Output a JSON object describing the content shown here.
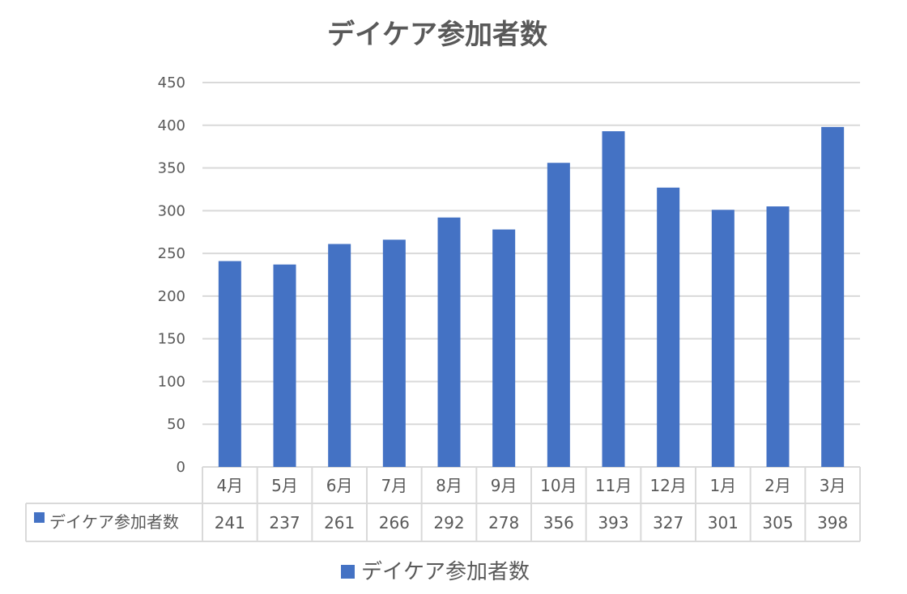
{
  "chart_data": {
    "type": "bar",
    "title": "デイケア参加者数",
    "categories": [
      "4月",
      "5月",
      "6月",
      "7月",
      "8月",
      "9月",
      "10月",
      "11月",
      "12月",
      "1月",
      "2月",
      "3月"
    ],
    "series": [
      {
        "name": "デイケア参加者数",
        "values": [
          241,
          237,
          261,
          266,
          292,
          278,
          356,
          393,
          327,
          301,
          305,
          398
        ]
      }
    ],
    "ylim": [
      0,
      450
    ],
    "yticks": [
      0,
      50,
      100,
      150,
      200,
      250,
      300,
      350,
      400,
      450
    ],
    "grid": true,
    "data_table": true,
    "legend_position": "bottom",
    "colors": {
      "bar": "#4472C4",
      "grid": "#D9D9D9",
      "text": "#595959"
    }
  }
}
